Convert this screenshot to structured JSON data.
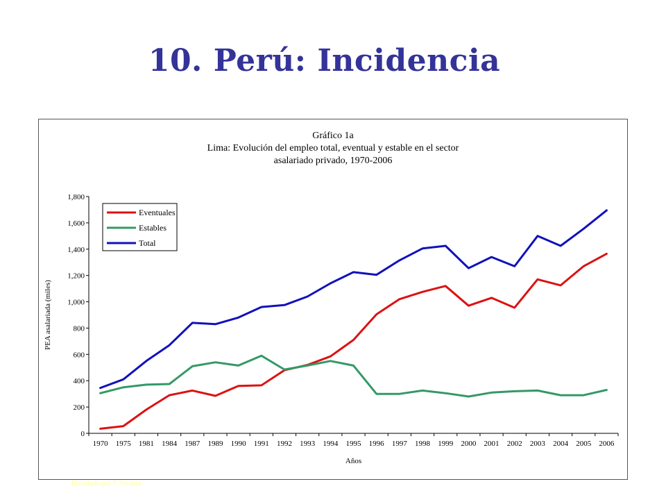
{
  "slide": {
    "title": "10. Perú: Incidencia",
    "credit": "Elaborado por F. Verdera"
  },
  "chart_data": {
    "type": "line",
    "title": [
      "Gráfico 1a",
      "Lima: Evolución del empleo total, eventual y estable en el sector",
      "asalariado privado, 1970-2006"
    ],
    "xlabel": "Años",
    "ylabel": "PEA asalariada (miles)",
    "categories": [
      "1970",
      "1975",
      "1981",
      "1984",
      "1987",
      "1989",
      "1990",
      "1991",
      "1992",
      "1993",
      "1994",
      "1995",
      "1996",
      "1997",
      "1998",
      "1999",
      "2000",
      "2001",
      "2002",
      "2003",
      "2004",
      "2005",
      "2006"
    ],
    "ylim": [
      0,
      1800
    ],
    "yticks": [
      "0",
      "200",
      "400",
      "600",
      "800",
      "1,000",
      "1,200",
      "1,400",
      "1,600",
      "1,800"
    ],
    "grid": false,
    "legend": "top-left",
    "series": [
      {
        "name": "Eventuales",
        "color": "#dd1111",
        "values": [
          35,
          55,
          180,
          290,
          325,
          285,
          360,
          365,
          480,
          520,
          585,
          710,
          905,
          1020,
          1075,
          1120,
          970,
          1030,
          955,
          1170,
          1125,
          1270,
          1365
        ]
      },
      {
        "name": "Estables",
        "color": "#339966",
        "values": [
          305,
          350,
          370,
          375,
          510,
          540,
          515,
          590,
          485,
          515,
          550,
          515,
          300,
          300,
          325,
          305,
          280,
          310,
          320,
          325,
          290,
          290,
          330
        ]
      },
      {
        "name": "Total",
        "color": "#1111bb",
        "values": [
          345,
          410,
          550,
          670,
          840,
          830,
          880,
          960,
          975,
          1040,
          1140,
          1225,
          1205,
          1315,
          1405,
          1425,
          1255,
          1340,
          1270,
          1500,
          1425,
          1555,
          1695
        ]
      }
    ]
  }
}
